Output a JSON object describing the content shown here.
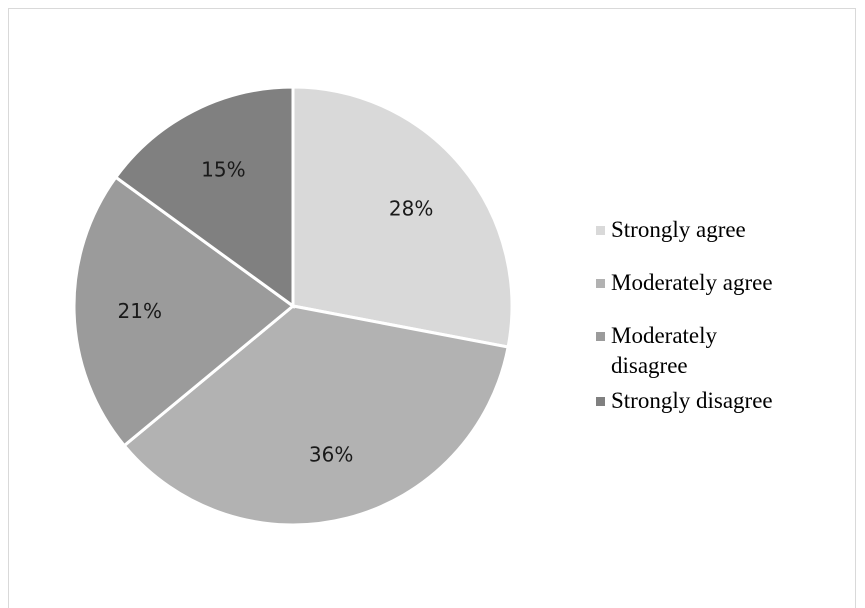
{
  "chart_data": {
    "type": "pie",
    "categories": [
      "Strongly agree",
      "Moderately agree",
      "Moderately disagree",
      "Strongly disagree"
    ],
    "values": [
      28,
      36,
      21,
      15
    ],
    "labels": [
      "28%",
      "36%",
      "21%",
      "15%"
    ],
    "colors": [
      "#d9d9d9",
      "#b2b2b2",
      "#9b9b9b",
      "#808080"
    ],
    "legend": {
      "position": "right",
      "items": [
        {
          "label": "Strongly agree",
          "color": "#d9d9d9"
        },
        {
          "label": "Moderately agree",
          "color": "#b2b2b2"
        },
        {
          "label": "Moderately disagree",
          "color": "#9b9b9b"
        },
        {
          "label": "Strongly disagree",
          "color": "#808080"
        }
      ]
    }
  }
}
